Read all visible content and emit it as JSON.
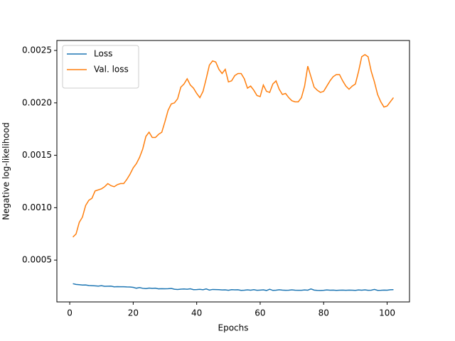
{
  "chart_data": {
    "type": "line",
    "xlabel": "Epochs",
    "ylabel": "Negative log-likelihood",
    "x": [
      1,
      2,
      3,
      4,
      5,
      6,
      7,
      8,
      9,
      10,
      11,
      12,
      13,
      14,
      15,
      16,
      17,
      18,
      19,
      20,
      21,
      22,
      23,
      24,
      25,
      26,
      27,
      28,
      29,
      30,
      31,
      32,
      33,
      34,
      35,
      36,
      37,
      38,
      39,
      40,
      41,
      42,
      43,
      44,
      45,
      46,
      47,
      48,
      49,
      50,
      51,
      52,
      53,
      54,
      55,
      56,
      57,
      58,
      59,
      60,
      61,
      62,
      63,
      64,
      65,
      66,
      67,
      68,
      69,
      70,
      71,
      72,
      73,
      74,
      75,
      76,
      77,
      78,
      79,
      80,
      81,
      82,
      83,
      84,
      85,
      86,
      87,
      88,
      89,
      90,
      91,
      92,
      93,
      94,
      95,
      96,
      97,
      98,
      99,
      100,
      101,
      102
    ],
    "series": [
      {
        "name": "Loss",
        "color": "#1f77b4",
        "values": [
          0.000275,
          0.000268,
          0.000265,
          0.000262,
          0.000263,
          0.000258,
          0.000256,
          0.000254,
          0.000252,
          0.000256,
          0.00025,
          0.000251,
          0.000252,
          0.000245,
          0.000247,
          0.000246,
          0.000246,
          0.000244,
          0.000243,
          0.00024,
          0.000232,
          0.000238,
          0.000231,
          0.000228,
          0.000233,
          0.000231,
          0.000232,
          0.000226,
          0.000227,
          0.000226,
          0.000227,
          0.00023,
          0.000222,
          0.00022,
          0.000223,
          0.000225,
          0.000222,
          0.000226,
          0.000218,
          0.000219,
          0.000221,
          0.000217,
          0.000225,
          0.000214,
          0.00022,
          0.000219,
          0.000218,
          0.000215,
          0.000216,
          0.000212,
          0.000218,
          0.000216,
          0.000217,
          0.000211,
          0.000213,
          0.000216,
          0.000213,
          0.000218,
          0.000212,
          0.000214,
          0.000216,
          0.00021,
          0.000222,
          0.000211,
          0.000213,
          0.000217,
          0.000214,
          0.000212,
          0.000213,
          0.000216,
          0.000213,
          0.000212,
          0.000212,
          0.000215,
          0.000213,
          0.000225,
          0.000214,
          0.000211,
          0.00021,
          0.000212,
          0.000215,
          0.000213,
          0.000214,
          0.000211,
          0.000213,
          0.000214,
          0.000212,
          0.000214,
          0.000213,
          0.000211,
          0.000215,
          0.000213,
          0.000216,
          0.000212,
          0.000213,
          0.00022,
          0.000211,
          0.000212,
          0.000214,
          0.000213,
          0.000217,
          0.000218
        ]
      },
      {
        "name": "Val. loss",
        "color": "#ff7f0e",
        "values": [
          0.00072,
          0.00075,
          0.00086,
          0.00091,
          0.00102,
          0.00107,
          0.00109,
          0.00116,
          0.00117,
          0.00118,
          0.0012,
          0.00123,
          0.00121,
          0.0012,
          0.00122,
          0.00123,
          0.00123,
          0.00127,
          0.00132,
          0.00138,
          0.00142,
          0.00148,
          0.00156,
          0.00168,
          0.00172,
          0.00167,
          0.00167,
          0.0017,
          0.00172,
          0.00182,
          0.00193,
          0.00199,
          0.002,
          0.00204,
          0.00215,
          0.00218,
          0.00223,
          0.00217,
          0.00214,
          0.00209,
          0.00205,
          0.00211,
          0.00223,
          0.00236,
          0.0024,
          0.00239,
          0.00232,
          0.00228,
          0.00232,
          0.0022,
          0.00221,
          0.00226,
          0.00228,
          0.00228,
          0.00223,
          0.00214,
          0.00216,
          0.00212,
          0.00207,
          0.00206,
          0.00217,
          0.00211,
          0.0021,
          0.00218,
          0.00221,
          0.00213,
          0.00208,
          0.00209,
          0.00205,
          0.00202,
          0.00201,
          0.00201,
          0.00205,
          0.00216,
          0.00235,
          0.00225,
          0.00215,
          0.00212,
          0.0021,
          0.00211,
          0.00216,
          0.00221,
          0.00225,
          0.00227,
          0.00227,
          0.00221,
          0.00216,
          0.00213,
          0.00216,
          0.00218,
          0.0023,
          0.00244,
          0.00246,
          0.00244,
          0.0023,
          0.0022,
          0.00208,
          0.00201,
          0.00196,
          0.00197,
          0.00201,
          0.00205
        ]
      }
    ],
    "xlim": [
      -4.05,
      107.05
    ],
    "xticks": [
      0,
      20,
      40,
      60,
      80,
      100
    ],
    "ylim": [
      0.000101,
      0.002595
    ],
    "yticks": [
      0.0005,
      {
        "value": 0.001,
        "label": "0.0010"
      },
      0.0015,
      {
        "value": 0.002,
        "label": "0.0020"
      },
      0.0025
    ],
    "legend": "upper left"
  }
}
